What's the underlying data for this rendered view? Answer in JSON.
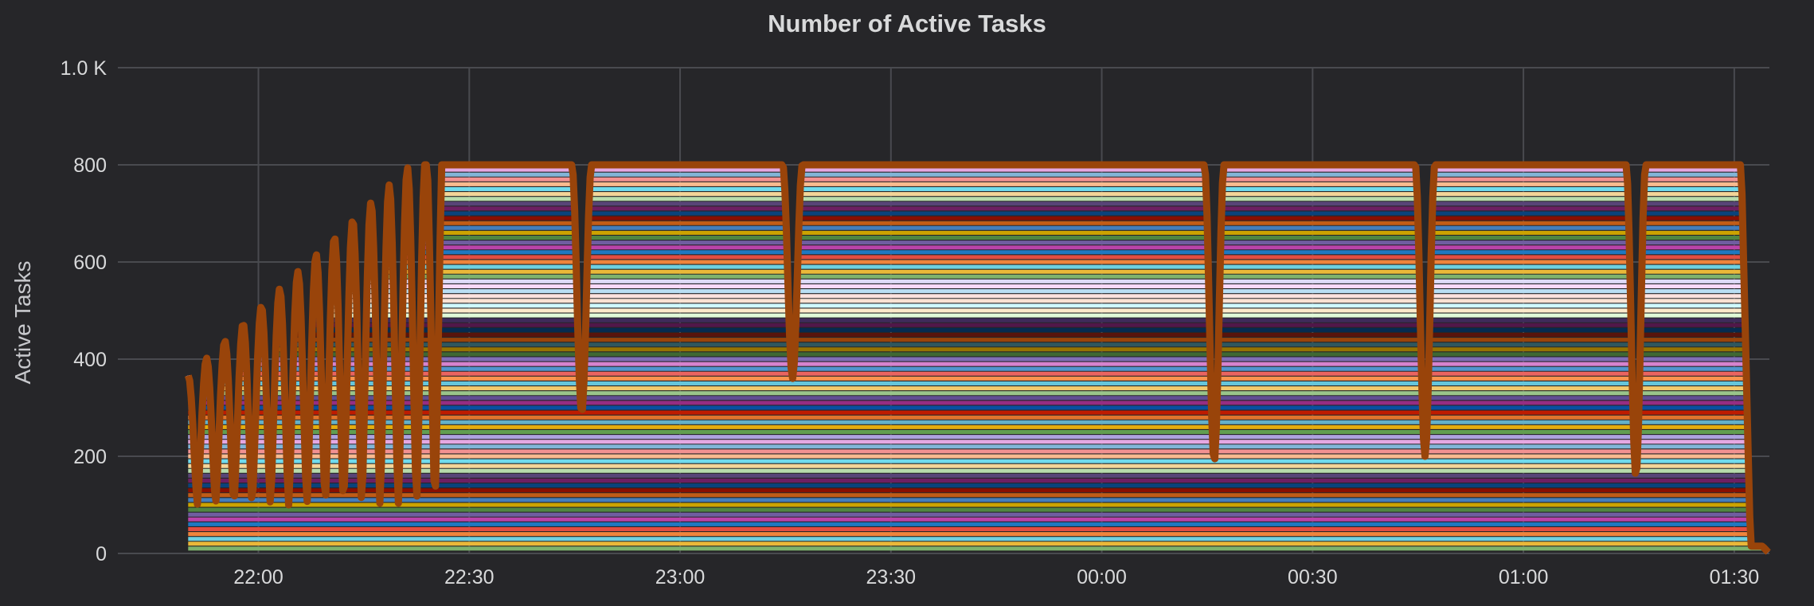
{
  "chart_data": {
    "type": "line",
    "title": "Number of Active Tasks",
    "xlabel": "",
    "ylabel": "Active Tasks",
    "ylim": [
      0,
      1000
    ],
    "xlim": [
      "21:40",
      "01:35"
    ],
    "y_ticks": [
      {
        "value": 0,
        "label": "0"
      },
      {
        "value": 200,
        "label": "200"
      },
      {
        "value": 400,
        "label": "400"
      },
      {
        "value": 600,
        "label": "600"
      },
      {
        "value": 800,
        "label": "800"
      },
      {
        "value": 1000,
        "label": "1.0 K"
      }
    ],
    "x_ticks": [
      {
        "time": "22:00",
        "label": "22:00"
      },
      {
        "time": "22:30",
        "label": "22:30"
      },
      {
        "time": "23:00",
        "label": "23:00"
      },
      {
        "time": "23:30",
        "label": "23:30"
      },
      {
        "time": "00:00",
        "label": "00:00"
      },
      {
        "time": "00:30",
        "label": "00:30"
      },
      {
        "time": "01:00",
        "label": "01:00"
      },
      {
        "time": "01:30",
        "label": "01:30"
      }
    ],
    "grid": true,
    "legend": "none",
    "stacked": true,
    "series_count": 80,
    "series_colors": [
      "#7eb26d",
      "#eab839",
      "#6ed0e0",
      "#ef843c",
      "#e24d42",
      "#1f78c1",
      "#ba43a9",
      "#705da0",
      "#508642",
      "#cca300",
      "#447ebc",
      "#c15c17",
      "#890f02",
      "#0a437c",
      "#6d1f62",
      "#584477",
      "#b7dbab",
      "#f4d598",
      "#70dbed",
      "#f9ba8f",
      "#f29191",
      "#82b5d8",
      "#e5a8e2",
      "#aea2e0",
      "#629e51",
      "#e5ac0e",
      "#64b0c8",
      "#e0752d",
      "#bf1b00",
      "#0a50a1",
      "#962d82",
      "#614d93",
      "#9ac48a",
      "#f2c96d",
      "#65c5db",
      "#f9934e",
      "#ea6460",
      "#5195ce",
      "#d683ce",
      "#806eb7",
      "#3f6833",
      "#967302",
      "#2f575e",
      "#99440a",
      "#58140c",
      "#052b51",
      "#511749",
      "#3f2b5b",
      "#e0f9d7",
      "#fceaca",
      "#cffaff",
      "#f9e2d2",
      "#fce2de",
      "#badff4",
      "#f9d9f9",
      "#dedaf7"
    ],
    "top_series_color": "#99440a",
    "per_series_plateau": 10,
    "total_plateau": 800,
    "dips": [
      {
        "time": "22:46",
        "depth_total": 290
      },
      {
        "time": "23:16",
        "depth_total": 360
      },
      {
        "time": "00:16",
        "depth_total": 190
      },
      {
        "time": "00:46",
        "depth_total": 200
      },
      {
        "time": "01:16",
        "depth_total": 160
      }
    ],
    "ramp_up": {
      "start": "21:50",
      "end": "22:26",
      "peak": 800
    },
    "ramp_down": {
      "start": "01:31",
      "tail_end": "01:34",
      "tail_value": 15
    }
  }
}
